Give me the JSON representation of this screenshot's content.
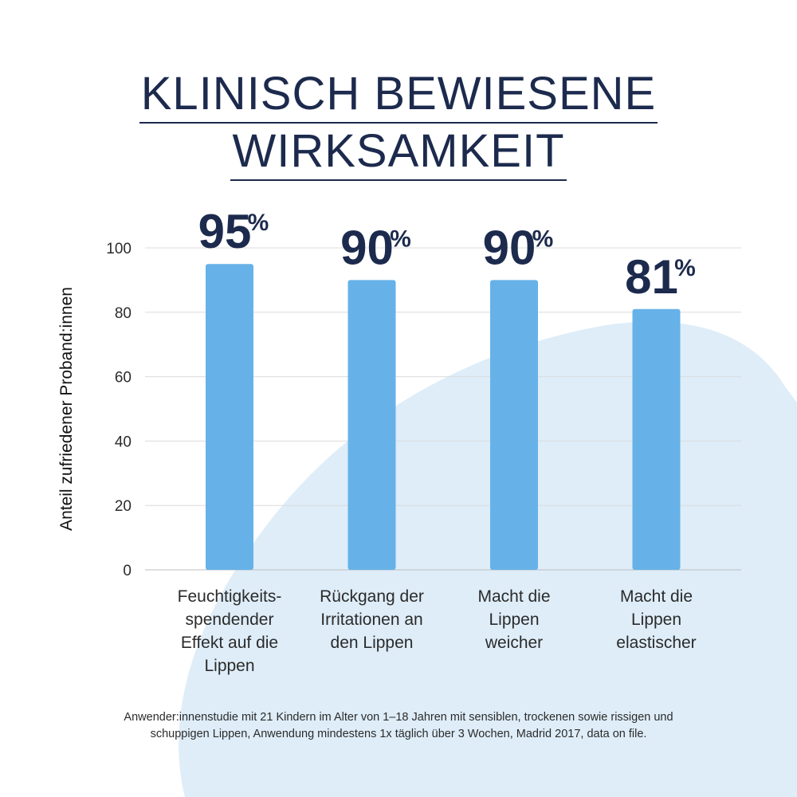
{
  "title": {
    "line1": "KLINISCH BEWIESENE",
    "line2": "WIRKSAMKEIT"
  },
  "chart_data": {
    "type": "bar",
    "categories": [
      [
        "Feuchtigkeits-",
        "spendender",
        "Effekt auf die",
        "Lippen"
      ],
      [
        "Rückgang der",
        "Irritationen an",
        "den Lippen"
      ],
      [
        "Macht die",
        "Lippen",
        "weicher"
      ],
      [
        "Macht die",
        "Lippen",
        "elastischer"
      ]
    ],
    "values": [
      95,
      90,
      90,
      81
    ],
    "value_labels": [
      "95",
      "90",
      "90",
      "81"
    ],
    "value_suffix": "%",
    "ylabel": "Anteil zufriedener Proband:innen",
    "ylim": [
      0,
      100
    ],
    "yticks": [
      0,
      20,
      40,
      60,
      80,
      100
    ],
    "grid": true,
    "bar_color": "#66b2e8",
    "label_color": "#1c2a4d"
  },
  "background": {
    "blob_color": "#deedf8"
  },
  "footnote": {
    "line1": "Anwender:innenstudie mit 21 Kindern im Alter von 1–18 Jahren mit sensiblen, trockenen sowie rissigen und",
    "line2": "schuppigen Lippen, Anwendung mindestens 1x täglich über 3 Wochen, Madrid 2017, data on file."
  }
}
